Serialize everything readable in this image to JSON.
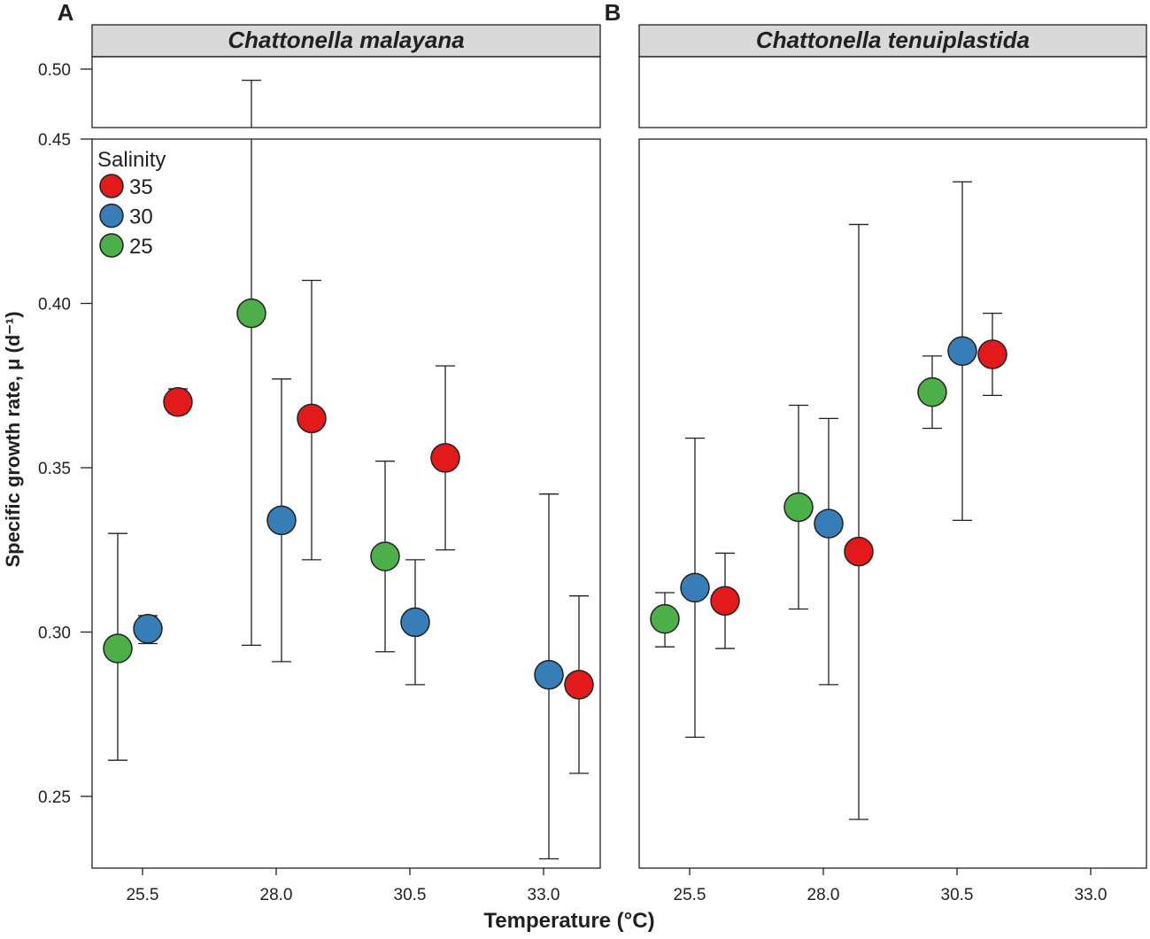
{
  "chart_data": {
    "type": "scatter",
    "ylabel": "Specific growth rate, μ (d⁻¹)",
    "xlabel": "Temperature (°C)",
    "y_ticks": [
      "0.25",
      "0.30",
      "0.35",
      "0.40",
      "0.45",
      "0.50"
    ],
    "x_ticks": [
      "25.5",
      "28.0",
      "30.5",
      "33.0"
    ],
    "ylim": [
      0.225,
      0.45
    ],
    "ylim_upper": [
      0.45,
      0.508
    ],
    "legend": {
      "title": "Salinity",
      "placement": "top-left",
      "entries": [
        {
          "label": "35",
          "color": "#e31a1c"
        },
        {
          "label": "30",
          "color": "#377eb8"
        },
        {
          "label": "25",
          "color": "#4daf4a"
        }
      ]
    },
    "panels": [
      {
        "letter": "A",
        "title": "Chattonella malayana",
        "points": [
          {
            "temp": 25.5,
            "salinity": "25",
            "mean": 0.295,
            "lo": 0.261,
            "hi": 0.33
          },
          {
            "temp": 25.5,
            "salinity": "30",
            "mean": 0.301,
            "lo": 0.2965,
            "hi": 0.305
          },
          {
            "temp": 25.5,
            "salinity": "35",
            "mean": 0.37,
            "lo": 0.3665,
            "hi": 0.374
          },
          {
            "temp": 28.0,
            "salinity": "25",
            "mean": 0.397,
            "lo": 0.296,
            "hi": 0.492
          },
          {
            "temp": 28.0,
            "salinity": "30",
            "mean": 0.334,
            "lo": 0.291,
            "hi": 0.377
          },
          {
            "temp": 28.0,
            "salinity": "35",
            "mean": 0.365,
            "lo": 0.322,
            "hi": 0.407
          },
          {
            "temp": 30.5,
            "salinity": "25",
            "mean": 0.323,
            "lo": 0.294,
            "hi": 0.352
          },
          {
            "temp": 30.5,
            "salinity": "30",
            "mean": 0.303,
            "lo": 0.284,
            "hi": 0.322
          },
          {
            "temp": 30.5,
            "salinity": "35",
            "mean": 0.353,
            "lo": 0.325,
            "hi": 0.381
          },
          {
            "temp": 33.0,
            "salinity": "30",
            "mean": 0.287,
            "lo": 0.231,
            "hi": 0.342
          },
          {
            "temp": 33.0,
            "salinity": "35",
            "mean": 0.284,
            "lo": 0.257,
            "hi": 0.311
          }
        ]
      },
      {
        "letter": "B",
        "title": "Chattonella tenuiplastida",
        "points": [
          {
            "temp": 25.5,
            "salinity": "25",
            "mean": 0.304,
            "lo": 0.2955,
            "hi": 0.312
          },
          {
            "temp": 25.5,
            "salinity": "30",
            "mean": 0.3135,
            "lo": 0.268,
            "hi": 0.359
          },
          {
            "temp": 25.5,
            "salinity": "35",
            "mean": 0.3095,
            "lo": 0.295,
            "hi": 0.324
          },
          {
            "temp": 28.0,
            "salinity": "25",
            "mean": 0.338,
            "lo": 0.307,
            "hi": 0.369
          },
          {
            "temp": 28.0,
            "salinity": "30",
            "mean": 0.333,
            "lo": 0.284,
            "hi": 0.365
          },
          {
            "temp": 28.0,
            "salinity": "35",
            "mean": 0.3245,
            "lo": 0.243,
            "hi": 0.424
          },
          {
            "temp": 30.5,
            "salinity": "25",
            "mean": 0.373,
            "lo": 0.362,
            "hi": 0.384
          },
          {
            "temp": 30.5,
            "salinity": "30",
            "mean": 0.3855,
            "lo": 0.334,
            "hi": 0.437
          },
          {
            "temp": 30.5,
            "salinity": "35",
            "mean": 0.3845,
            "lo": 0.372,
            "hi": 0.397
          }
        ]
      }
    ]
  }
}
